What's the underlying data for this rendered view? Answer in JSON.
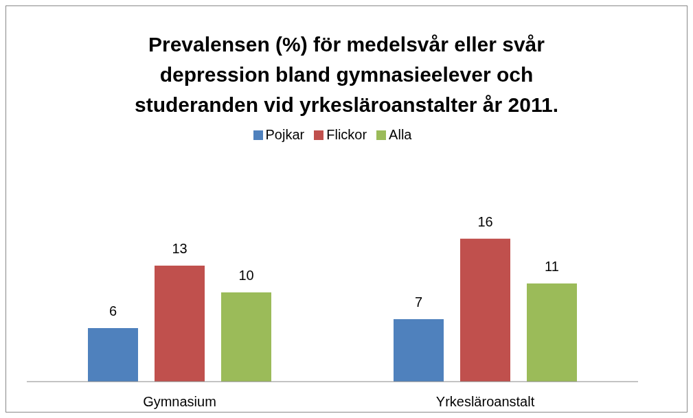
{
  "chart_data": {
    "type": "bar",
    "title": "Prevalensen (%) för medelsvår eller svår depression bland gymnasieelever och studeranden vid yrkesläroanstalter år 2011.",
    "categories": [
      "Gymnasium",
      "Yrkesläroanstalt"
    ],
    "series": [
      {
        "name": "Pojkar",
        "color": "#4f81bd",
        "values": [
          6,
          7
        ]
      },
      {
        "name": "Flickor",
        "color": "#c0504d",
        "values": [
          13,
          16
        ]
      },
      {
        "name": "Alla",
        "color": "#9bbb59",
        "values": [
          10,
          11
        ]
      }
    ],
    "data_labels": true,
    "legend": "top",
    "grid": false
  }
}
